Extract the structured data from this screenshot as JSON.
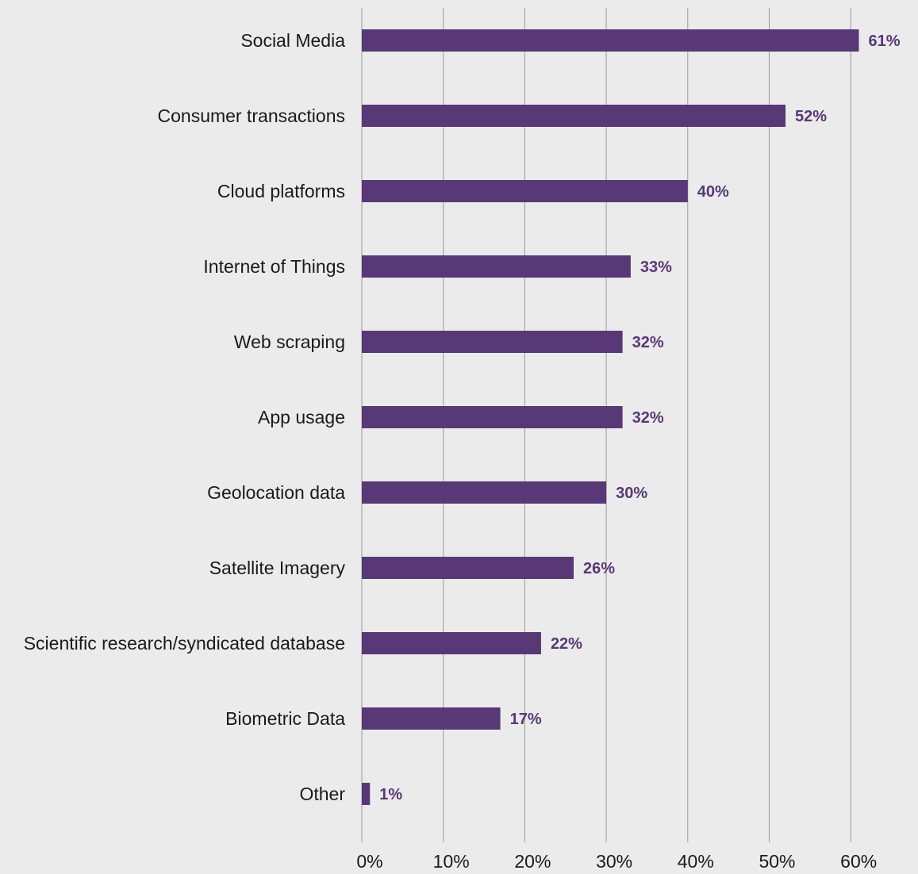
{
  "chart_data": {
    "type": "bar",
    "orientation": "horizontal",
    "title": "",
    "xlabel": "",
    "ylabel": "",
    "categories": [
      "Social Media",
      "Consumer transactions",
      "Cloud platforms",
      "Internet of Things",
      "Web scraping",
      "App usage",
      "Geolocation data",
      "Satellite Imagery",
      "Scientific research/syndicated database",
      "Biometric Data",
      "Other"
    ],
    "values": [
      61,
      52,
      40,
      33,
      32,
      32,
      30,
      26,
      22,
      17,
      1
    ],
    "value_labels": [
      "61%",
      "52%",
      "40%",
      "33%",
      "32%",
      "32%",
      "30%",
      "26%",
      "22%",
      "17%",
      "1%"
    ],
    "xlim": [
      0,
      60
    ],
    "xticks": [
      0,
      10,
      20,
      30,
      40,
      50,
      60
    ],
    "xtick_labels": [
      "0%",
      "10%",
      "20%",
      "30%",
      "40%",
      "50%",
      "60%"
    ],
    "grid": "vertical",
    "legend": "none",
    "colors": {
      "bar": "#583877",
      "value_label": "#583877",
      "gridline": "#9a9a9a",
      "background": "#ebebeb",
      "text": "#1a1a1a"
    }
  }
}
